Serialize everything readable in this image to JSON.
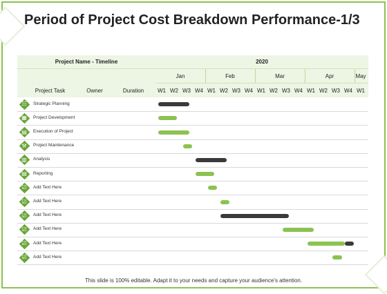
{
  "title": "Period of Project Cost Breakdown Performance-1/3",
  "footer": "This slide is 100% editable. Adapt it to your needs and capture your audience's attention.",
  "header": {
    "project_name_timeline": "Project Name - Timeline",
    "year": "2020",
    "columns": {
      "task": "Project Task",
      "owner": "Owner",
      "duration": "Duration"
    },
    "months": [
      "Jan",
      "Feb",
      "Mar",
      "Apr",
      "May"
    ],
    "weeks": [
      "W1",
      "W2",
      "W3",
      "W4",
      "W1",
      "W2",
      "W3",
      "W4",
      "W1",
      "W2",
      "W3",
      "W4",
      "W1",
      "W2",
      "W3",
      "W4",
      "W1"
    ]
  },
  "colors": {
    "accent_green": "#8cc251",
    "dark_bar": "#3a3a3a",
    "header_band": "#edf5e5",
    "icon_green": "#6aa539"
  },
  "tasks": [
    {
      "label": "Strategic Planning",
      "icon": "clipboard-icon",
      "bars": [
        {
          "start": 0,
          "end": 2.5,
          "color": "dark"
        }
      ]
    },
    {
      "label": "Project Development",
      "icon": "calendar-icon",
      "bars": [
        {
          "start": 0,
          "end": 1.5,
          "color": "green"
        }
      ]
    },
    {
      "label": "Execution of Project",
      "icon": "building-icon",
      "bars": [
        {
          "start": 0,
          "end": 2.5,
          "color": "green"
        }
      ]
    },
    {
      "label": "Project Maintenance",
      "icon": "wrench-icon",
      "bars": [
        {
          "start": 2,
          "end": 2.7,
          "color": "green"
        }
      ]
    },
    {
      "label": "Analysis",
      "icon": "chart-icon",
      "bars": [
        {
          "start": 3,
          "end": 5.5,
          "color": "dark"
        }
      ]
    },
    {
      "label": "Reporting",
      "icon": "document-icon",
      "bars": [
        {
          "start": 3,
          "end": 4.5,
          "color": "green"
        }
      ]
    },
    {
      "label": "Add Text Here",
      "icon": "checklist-icon",
      "bars": [
        {
          "start": 4,
          "end": 4.7,
          "color": "green"
        }
      ]
    },
    {
      "label": "Add Text Here",
      "icon": "checklist-icon",
      "bars": [
        {
          "start": 5,
          "end": 5.7,
          "color": "green"
        }
      ]
    },
    {
      "label": "Add Text Here",
      "icon": "checklist-icon",
      "bars": [
        {
          "start": 5,
          "end": 10.5,
          "color": "dark"
        }
      ]
    },
    {
      "label": "Add Text Here",
      "icon": "checklist-icon",
      "bars": [
        {
          "start": 10,
          "end": 12.5,
          "color": "green"
        }
      ]
    },
    {
      "label": "Add Text Here",
      "icon": "checklist-icon",
      "bars": [
        {
          "start": 12,
          "end": 15,
          "color": "green"
        },
        {
          "start": 15,
          "end": 15.7,
          "color": "dark"
        }
      ]
    },
    {
      "label": "Add Text Here",
      "icon": "checklist-icon",
      "bars": [
        {
          "start": 14,
          "end": 14.8,
          "color": "green"
        }
      ]
    }
  ]
}
